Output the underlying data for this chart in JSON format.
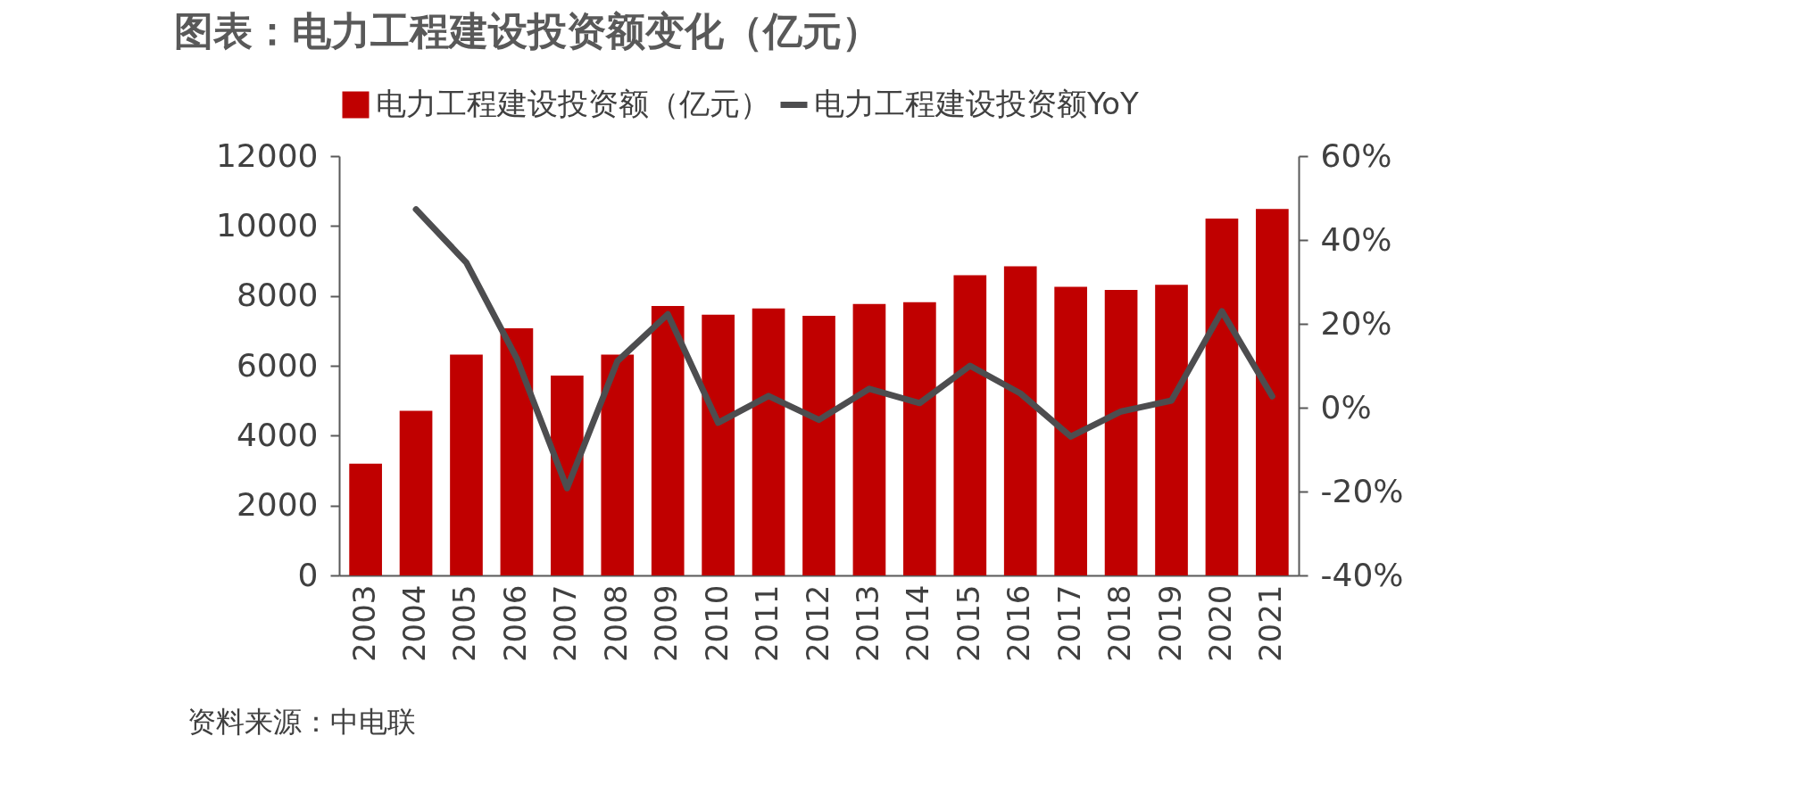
{
  "chart_data": {
    "type": "bar",
    "title": "图表：电力工程建设投资额变化（亿元）",
    "categories": [
      "2003",
      "2004",
      "2005",
      "2006",
      "2007",
      "2008",
      "2009",
      "2010",
      "2011",
      "2012",
      "2013",
      "2014",
      "2015",
      "2016",
      "2017",
      "2018",
      "2019",
      "2020",
      "2021"
    ],
    "series": [
      {
        "name": "电力工程建设投资额（亿元）",
        "color": "#c00000",
        "values": [
          3200,
          4710,
          6320,
          7070,
          5720,
          6320,
          7710,
          7460,
          7640,
          7430,
          7770,
          7820,
          8590,
          8850,
          8260,
          8170,
          8320,
          10210,
          10490
        ]
      },
      {
        "name": "电力工程建设投资额YoY",
        "type": "line",
        "axis": "y2",
        "color": "#4d4d4f",
        "values": [
          null,
          47.3,
          34.6,
          11.8,
          -19.2,
          11.1,
          22.3,
          -3.6,
          2.8,
          -2.9,
          4.5,
          1.1,
          10.0,
          3.4,
          -6.9,
          -0.9,
          1.7,
          23.0,
          2.7
        ]
      }
    ],
    "ylim": [
      0,
      12000
    ],
    "yticks": [
      0,
      2000,
      4000,
      6000,
      8000,
      10000,
      12000
    ],
    "y2lim": [
      -40,
      60
    ],
    "y2ticks": [
      {
        "value": -40,
        "label": "-40%"
      },
      {
        "value": -20,
        "label": "-20%"
      },
      {
        "value": 0,
        "label": "0%"
      },
      {
        "value": 20,
        "label": "20%"
      },
      {
        "value": 40,
        "label": "40%"
      },
      {
        "value": 60,
        "label": "60%"
      }
    ],
    "grid": false,
    "legend": "top",
    "marker": "none",
    "line_style": "solid",
    "annotations": [
      "资料来源：中电联"
    ]
  }
}
